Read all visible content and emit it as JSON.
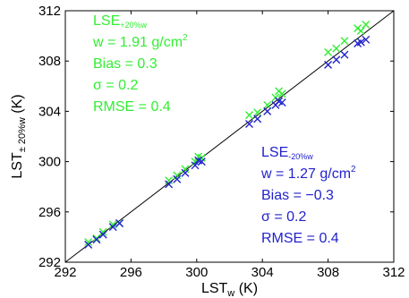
{
  "chart_data": {
    "type": "scatter",
    "title": "",
    "xlabel": {
      "main": "LST",
      "sub": "w",
      "unit": " (K)"
    },
    "ylabel": {
      "main": "LST",
      "sub": "± 20%w",
      "unit": " (K)"
    },
    "xlim": [
      292,
      312
    ],
    "ylim": [
      292,
      312
    ],
    "xticks": [
      292,
      296,
      300,
      304,
      308,
      312
    ],
    "yticks": [
      292,
      296,
      300,
      304,
      308,
      312
    ],
    "grid": false,
    "reference_line": {
      "from": [
        292,
        292
      ],
      "to": [
        312,
        312
      ],
      "color": "#000000"
    },
    "series": [
      {
        "marker": "x",
        "color": "#33ee33",
        "points": [
          [
            293.4,
            293.6
          ],
          [
            293.9,
            293.9
          ],
          [
            294.3,
            294.4
          ],
          [
            294.9,
            295.0
          ],
          [
            295.3,
            295.1
          ],
          [
            298.3,
            298.5
          ],
          [
            298.8,
            298.9
          ],
          [
            299.3,
            299.4
          ],
          [
            299.9,
            300.0
          ],
          [
            300.1,
            300.4
          ],
          [
            300.3,
            300.3
          ],
          [
            303.2,
            303.7
          ],
          [
            303.7,
            303.9
          ],
          [
            304.3,
            304.5
          ],
          [
            304.8,
            305.1
          ],
          [
            305.0,
            305.6
          ],
          [
            305.2,
            305.4
          ],
          [
            308.0,
            308.7
          ],
          [
            308.5,
            309.0
          ],
          [
            309.0,
            309.6
          ],
          [
            309.8,
            310.6
          ],
          [
            310.0,
            310.4
          ],
          [
            310.3,
            310.9
          ]
        ]
      },
      {
        "marker": "x",
        "color": "#2222cc",
        "points": [
          [
            293.4,
            293.4
          ],
          [
            293.9,
            293.8
          ],
          [
            294.3,
            294.2
          ],
          [
            294.9,
            294.8
          ],
          [
            295.3,
            295.1
          ],
          [
            298.3,
            298.2
          ],
          [
            298.8,
            298.6
          ],
          [
            299.3,
            299.1
          ],
          [
            299.9,
            299.7
          ],
          [
            300.1,
            300.1
          ],
          [
            300.3,
            300.0
          ],
          [
            303.2,
            303.0
          ],
          [
            303.7,
            303.4
          ],
          [
            304.3,
            304.0
          ],
          [
            304.8,
            304.5
          ],
          [
            305.0,
            304.8
          ],
          [
            305.2,
            304.7
          ],
          [
            308.0,
            307.7
          ],
          [
            308.5,
            308.1
          ],
          [
            309.0,
            308.5
          ],
          [
            309.8,
            309.4
          ],
          [
            310.0,
            309.5
          ],
          [
            310.3,
            309.7
          ]
        ]
      }
    ],
    "annotations": [
      {
        "color": "#33ee33",
        "lines": [
          {
            "main": "LSE",
            "sub": "+20%w"
          },
          {
            "main": "w = 1.91 g/cm",
            "sup": "2"
          },
          {
            "main": "Bias = 0.3"
          },
          {
            "main": "σ = 0.2"
          },
          {
            "main": "RMSE = 0.4"
          }
        ]
      },
      {
        "color": "#2222cc",
        "lines": [
          {
            "main": "LSE",
            "sub": "-20%w"
          },
          {
            "main": "w = 1.27 g/cm",
            "sup": "2"
          },
          {
            "main": "Bias = −0.3"
          },
          {
            "main": "σ = 0.2"
          },
          {
            "main": "RMSE = 0.4"
          }
        ]
      }
    ]
  }
}
